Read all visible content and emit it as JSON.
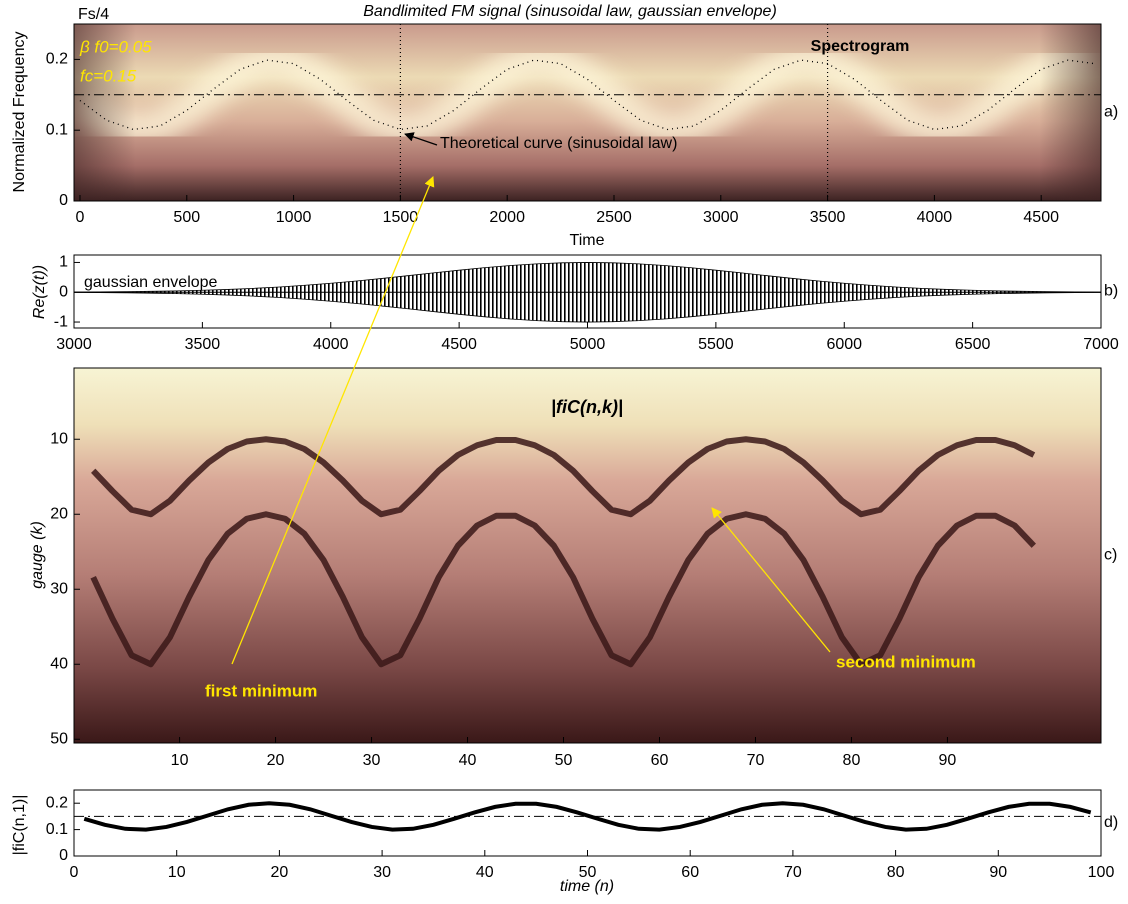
{
  "chart_data": [
    {
      "type": "heatmap",
      "title": "Bandlimited FM signal (sinusoidal law, gaussian envelope)",
      "xlabel": "Time",
      "ylabel": "Normalized Frequency",
      "annotations": [
        "β f0=0.05",
        "fc=0.15",
        "Spectrogram",
        "Theoretical curve (sinusoidal law)"
      ],
      "panel_label": "a)",
      "xlim": [
        -28,
        4780
      ],
      "ylim": [
        0,
        0.25
      ],
      "xticks": [
        0,
        500,
        1000,
        1500,
        2000,
        2500,
        3000,
        3500,
        4000,
        4500
      ],
      "yticks": [
        0,
        0.1,
        0.2,
        {
          "value": 0.25,
          "label": "Fs/4"
        }
      ],
      "vlines": [
        1500,
        3500
      ],
      "hline": 0.15,
      "x": [
        0,
        125,
        250,
        375,
        500,
        625,
        750,
        875,
        1000,
        1125,
        1250,
        1375,
        1500,
        1625,
        1750,
        1875,
        2000,
        2125,
        2250,
        2375,
        2500,
        2625,
        2750,
        2875,
        3000,
        3125,
        3250,
        3375,
        3500,
        3625,
        3750,
        3875,
        4000,
        4125,
        4250,
        4375,
        4500,
        4625,
        4750
      ],
      "values": [
        0.142,
        0.114,
        0.101,
        0.106,
        0.128,
        0.158,
        0.186,
        0.199,
        0.194,
        0.172,
        0.142,
        0.114,
        0.101,
        0.106,
        0.128,
        0.158,
        0.186,
        0.199,
        0.194,
        0.172,
        0.142,
        0.114,
        0.101,
        0.106,
        0.128,
        0.158,
        0.186,
        0.199,
        0.194,
        0.172,
        0.142,
        0.114,
        0.101,
        0.106,
        0.128,
        0.158,
        0.186,
        0.199,
        0.194
      ]
    },
    {
      "type": "envelope",
      "ylabel": "Re(z(t))",
      "annotations": [
        "gaussian envelope"
      ],
      "panel_label": "b)",
      "xlim": [
        3000,
        7000
      ],
      "ylim": [
        -1.2,
        1.25
      ],
      "xticks": [
        3000,
        3500,
        4000,
        4500,
        5000,
        5500,
        6000,
        6500,
        7000
      ],
      "yticks": [
        -1,
        0,
        1
      ],
      "x": [
        3000,
        3100,
        3200,
        3300,
        3400,
        3500,
        3600,
        3700,
        3800,
        3900,
        4000,
        4100,
        4200,
        4300,
        4400,
        4500,
        4600,
        4700,
        4800,
        4900,
        5000,
        5100,
        5200,
        5300,
        5400,
        5500,
        5600,
        5700,
        5800,
        5900,
        6000,
        6100,
        6200,
        6300,
        6400,
        6500,
        6600,
        6700,
        6800,
        6900,
        7000
      ],
      "values": [
        0.008,
        0.013,
        0.02,
        0.031,
        0.046,
        0.067,
        0.095,
        0.131,
        0.177,
        0.234,
        0.301,
        0.378,
        0.463,
        0.555,
        0.649,
        0.741,
        0.825,
        0.898,
        0.953,
        0.988,
        1,
        0.988,
        0.953,
        0.898,
        0.825,
        0.741,
        0.649,
        0.555,
        0.463,
        0.378,
        0.301,
        0.234,
        0.177,
        0.131,
        0.095,
        0.067,
        0.046,
        0.031,
        0.02,
        0.013,
        0.008
      ]
    },
    {
      "type": "heatmap",
      "title": "|fiC(n,k)|",
      "ylabel": "gauge (k)",
      "panel_label": "c)",
      "xlim": [
        -1,
        106
      ],
      "ylim": [
        0.5,
        50.5
      ],
      "yreverse": true,
      "xticks": [
        10,
        20,
        30,
        40,
        50,
        60,
        70,
        80,
        90
      ],
      "yticks": [
        10,
        20,
        30,
        40,
        50
      ],
      "x": [
        1,
        3,
        5,
        7,
        9,
        11,
        13,
        15,
        17,
        19,
        21,
        23,
        25,
        27,
        29,
        31,
        33,
        35,
        37,
        39,
        41,
        43,
        45,
        47,
        49,
        51,
        53,
        55,
        57,
        59,
        61,
        63,
        65,
        67,
        69,
        71,
        73,
        75,
        77,
        79,
        81,
        83,
        85,
        87,
        89,
        91,
        93,
        95,
        97,
        99
      ],
      "series": [
        {
          "name": "first minimum",
          "color": "#3a1818",
          "values": [
            14.2,
            16.9,
            19.4,
            20,
            18.2,
            15.5,
            13.1,
            11.3,
            10.3,
            10,
            10.3,
            11.3,
            13.1,
            15.5,
            18.2,
            20,
            19.4,
            16.9,
            14.2,
            12.1,
            10.8,
            10.1,
            10.1,
            10.8,
            12.1,
            14.2,
            16.9,
            19.4,
            20,
            18.2,
            15.5,
            13.1,
            11.3,
            10.3,
            10,
            10.3,
            11.3,
            13.1,
            15.5,
            18.2,
            20,
            19.4,
            16.9,
            14.2,
            12.1,
            10.8,
            10.1,
            10.1,
            10.8,
            12.1
          ]
        },
        {
          "name": "second minimum",
          "color": "#3a1818",
          "values": [
            28.4,
            33.9,
            38.8,
            40,
            36.4,
            31,
            26.1,
            22.6,
            20.6,
            20,
            20.6,
            22.6,
            26.1,
            31,
            36.4,
            40,
            38.8,
            33.9,
            28.4,
            24.2,
            21.5,
            20.2,
            20.2,
            21.5,
            24.2,
            28.4,
            33.9,
            38.8,
            40,
            36.4,
            31,
            26.1,
            22.6,
            20.6,
            20,
            20.6,
            22.6,
            26.1,
            31,
            36.4,
            40,
            38.8,
            33.9,
            28.4,
            24.2,
            21.5,
            20.2,
            20.2,
            21.5,
            24.2
          ]
        }
      ]
    },
    {
      "type": "line",
      "xlabel": "time (n)",
      "ylabel": "|fiC(n,1)|",
      "panel_label": "d)",
      "xlim": [
        0,
        100
      ],
      "ylim": [
        0,
        0.25
      ],
      "xticks": [
        0,
        10,
        20,
        30,
        40,
        50,
        60,
        70,
        80,
        90,
        100
      ],
      "yticks": [
        0,
        0.1,
        0.2
      ],
      "hline": 0.15,
      "x": [
        1,
        3,
        5,
        7,
        9,
        11,
        13,
        15,
        17,
        19,
        21,
        23,
        25,
        27,
        29,
        31,
        33,
        35,
        37,
        39,
        41,
        43,
        45,
        47,
        49,
        51,
        53,
        55,
        57,
        59,
        61,
        63,
        65,
        67,
        69,
        71,
        73,
        75,
        77,
        79,
        81,
        83,
        85,
        87,
        89,
        91,
        93,
        95,
        97,
        99
      ],
      "values": [
        0.141,
        0.118,
        0.103,
        0.1,
        0.11,
        0.129,
        0.153,
        0.177,
        0.194,
        0.2,
        0.194,
        0.177,
        0.153,
        0.129,
        0.11,
        0.1,
        0.103,
        0.118,
        0.141,
        0.165,
        0.186,
        0.198,
        0.198,
        0.186,
        0.165,
        0.141,
        0.118,
        0.103,
        0.1,
        0.11,
        0.129,
        0.153,
        0.177,
        0.194,
        0.2,
        0.194,
        0.177,
        0.153,
        0.129,
        0.11,
        0.1,
        0.103,
        0.118,
        0.141,
        0.165,
        0.186,
        0.198,
        0.198,
        0.186,
        0.165
      ]
    }
  ]
}
